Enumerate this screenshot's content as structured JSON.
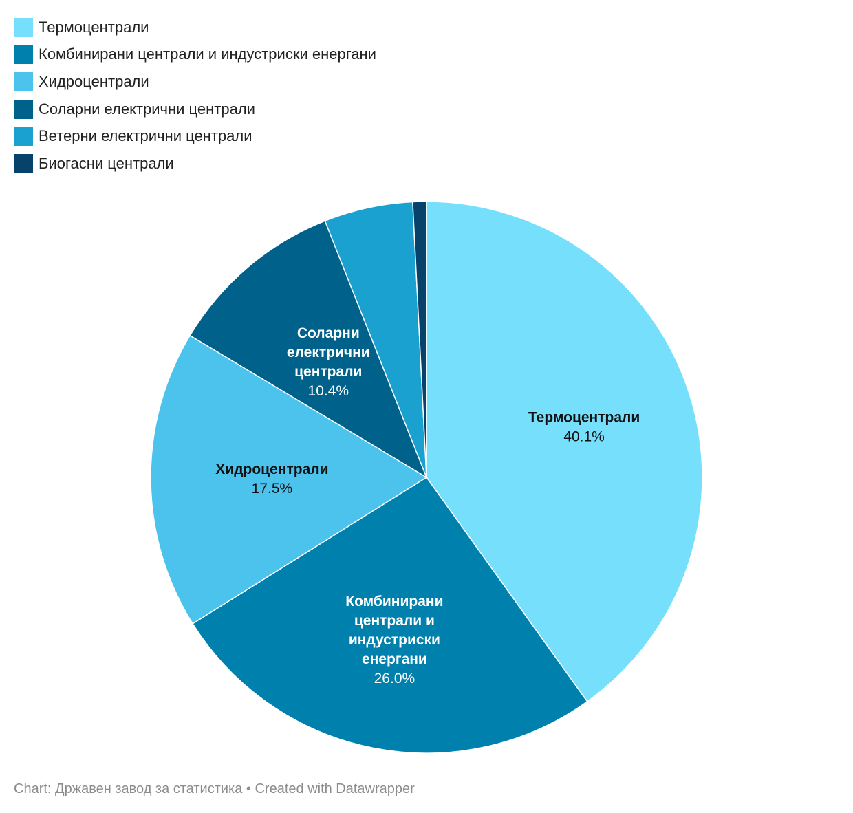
{
  "chart_data": {
    "type": "pie",
    "slices": [
      {
        "name": "Термоцентрали",
        "value": 40.1,
        "value_label": "40.1%",
        "color": "#76e0fc",
        "label_lines": [
          "Термоцентрали"
        ],
        "label_color": "#111111"
      },
      {
        "name": "Комбинирани централи и индустриски енергани",
        "value": 26.0,
        "value_label": "26.0%",
        "color": "#0080ac",
        "label_lines": [
          "Комбинирани",
          "централи и",
          "индустриски",
          "енергани"
        ],
        "label_color": "#ffffff"
      },
      {
        "name": "Хидроцентрали",
        "value": 17.5,
        "value_label": "17.5%",
        "color": "#4bc3ed",
        "label_lines": [
          "Хидроцентрали"
        ],
        "label_color": "#111111"
      },
      {
        "name": "Соларни електрични централи",
        "value": 10.4,
        "value_label": "10.4%",
        "color": "#00628b",
        "label_lines": [
          "Соларни",
          "електрични",
          "централи"
        ],
        "label_color": "#ffffff"
      },
      {
        "name": "Ветерни електрични централи",
        "value": 5.2,
        "value_label": "",
        "color": "#1aa1cf",
        "label_lines": [],
        "label_color": "#ffffff"
      },
      {
        "name": "Биогасни централи",
        "value": 0.8,
        "value_label": "",
        "color": "#07426b",
        "label_lines": [],
        "label_color": "#ffffff"
      }
    ],
    "legend_position": "top-left"
  },
  "footer": {
    "text": "Chart: Државен завод за статистика • Created with Datawrapper"
  }
}
